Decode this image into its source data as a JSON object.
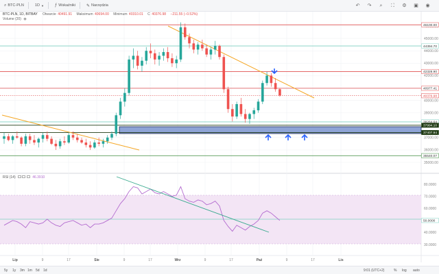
{
  "toolbar": {
    "pair": "BTC-PLN",
    "interval": "1D",
    "indicators_label": "Wskaźniki",
    "tools_label": "Narzędzia"
  },
  "legend": {
    "title": "BTC-PLN, 1D, BITBAY",
    "open_label": "Otwarcie",
    "open_value": "40491.91",
    "high_label": "Maksimum",
    "high_value": "40694.00",
    "low_label": "Minimum",
    "low_value": "40310.01",
    "close_label": "C",
    "close_value": "40376.98",
    "change_value": "−211.55 (−0.52%)",
    "volume_label": "Volume (20)"
  },
  "rsi_legend": {
    "label": "RSI (14)",
    "value": "46.3910"
  },
  "price_axis": {
    "ticks": [
      "46000.00",
      "45000.00",
      "44000.00",
      "43000.00",
      "42000.00",
      "41000.00",
      "40000.00",
      "39000.00",
      "38000.00",
      "37000.00",
      "36000.00",
      "35000.00"
    ],
    "badges": [
      {
        "label": "46100.00",
        "price": 46100,
        "bg": "#ffffff",
        "fg": "#333333",
        "border": "#e05050"
      },
      {
        "label": "44394.70",
        "price": 44394.7,
        "bg": "#ffffff",
        "fg": "#333333",
        "border": "#7ecfc2"
      },
      {
        "label": "42328.90",
        "price": 42328.9,
        "bg": "#ffffff",
        "fg": "#333333",
        "border": "#e05050"
      },
      {
        "label": "40977.41",
        "price": 40977.41,
        "bg": "#ffffff",
        "fg": "#333333",
        "border": "#e05050"
      },
      {
        "label": "40376.98",
        "price": 40376.98,
        "bg": "#ffffff",
        "fg": "#e24a4a",
        "border": "#e24a4a"
      },
      {
        "label": "38264.64",
        "price": 38264.64,
        "bg": "#ffffff",
        "fg": "#333333",
        "border": "#7ecfc2"
      },
      {
        "label": "37994.10",
        "price": 37994.1,
        "bg": "#1f3a13",
        "fg": "#ffffff",
        "border": "#1f3a13"
      },
      {
        "label": "37407.94",
        "price": 37407.94,
        "bg": "#1f3a13",
        "fg": "#ffffff",
        "border": "#1f3a13"
      },
      {
        "label": "35540.07",
        "price": 35540.07,
        "bg": "#ffffff",
        "fg": "#333333",
        "border": "#3a8a3a"
      }
    ]
  },
  "rsi_axis": {
    "ticks": [
      "80.0000",
      "70.0000",
      "60.0000",
      "50.0000",
      "40.0000",
      "30.0000"
    ],
    "badge": "50.0000"
  },
  "time_axis": {
    "labels": [
      "Lip",
      "9",
      "17",
      "Sie",
      "9",
      "17",
      "Wrz",
      "9",
      "17",
      "Paź",
      "9",
      "17",
      "Lis"
    ]
  },
  "bottombar": {
    "ranges": [
      "5y",
      "1y",
      "3m",
      "1m",
      "5d",
      "1d"
    ],
    "clock": "9:01 (UTC+2)",
    "pct_label": "%",
    "log_label": "log",
    "auto_label": "auto"
  },
  "colors": {
    "up": "#26a69a",
    "down": "#ef5350",
    "resistance": "#e05050",
    "support_teal": "#7ecfc2",
    "trend_orange": "#f5a623",
    "zone_fill": "#8ea4d6",
    "zone_border": "#1f2a55",
    "rsi_line": "#b36bcf",
    "rsi_band": "#f3e5f5",
    "arrow_blue": "#2962ff"
  },
  "icons": {
    "undo": "undo-icon",
    "redo": "redo-icon",
    "search": "search-icon",
    "settings": "gear-icon",
    "save": "save-icon",
    "camera": "camera-icon",
    "fullscreen": "fullscreen-icon"
  }
}
